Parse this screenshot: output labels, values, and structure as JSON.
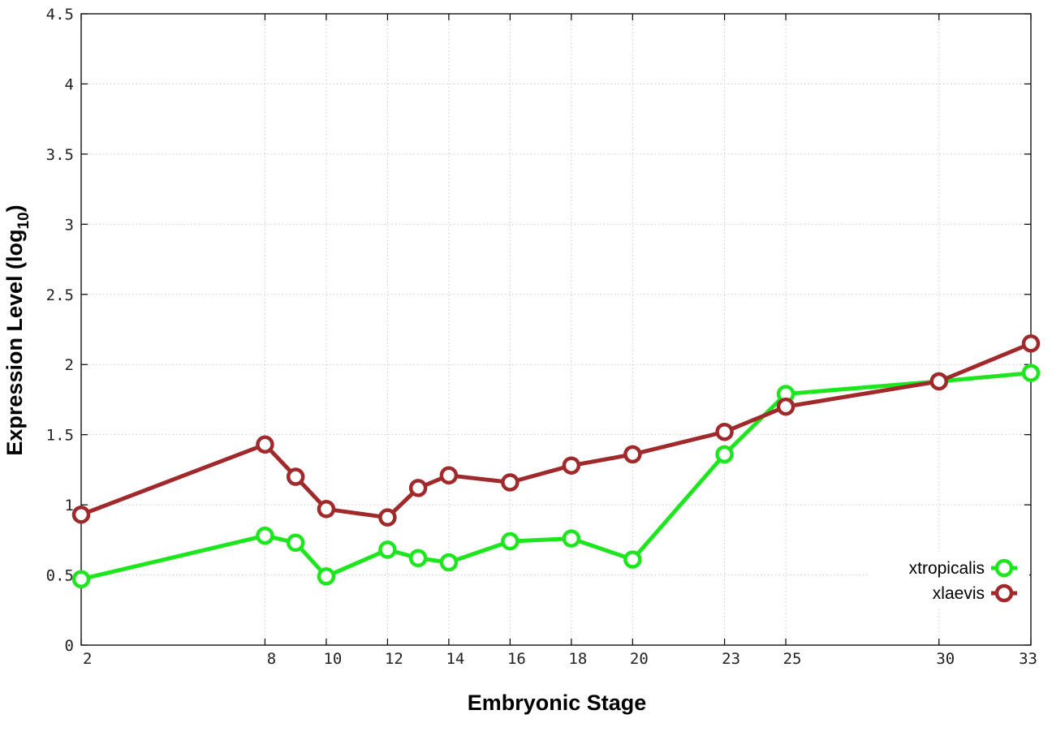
{
  "chart_data": {
    "type": "line",
    "title": "",
    "xlabel": "Embryonic Stage",
    "ylabel": {
      "main": "Expression Level (log",
      "sub": "10",
      "close": ")"
    },
    "x_ticks": [
      2,
      8,
      10,
      12,
      14,
      16,
      18,
      20,
      23,
      25,
      30,
      33
    ],
    "xlim": [
      2,
      33
    ],
    "ylim": [
      0,
      4.5
    ],
    "y_ticks": [
      0,
      0.5,
      1,
      1.5,
      2,
      2.5,
      3,
      3.5,
      4,
      4.5
    ],
    "y_tick_labels": [
      "0",
      "0.5",
      "1",
      "1.5",
      "2",
      "2.5",
      "3",
      "3.5",
      "4",
      "4.5"
    ],
    "grid": true,
    "legend_position": "bottom-right",
    "x": [
      2,
      8,
      9,
      10,
      12,
      13,
      14,
      16,
      18,
      20,
      23,
      25,
      30,
      33
    ],
    "series": [
      {
        "name": "xtropicalis",
        "color": "#1ee61e",
        "values": [
          0.47,
          0.78,
          0.73,
          0.49,
          0.68,
          0.62,
          0.59,
          0.74,
          0.76,
          0.61,
          1.36,
          1.79,
          1.88,
          1.94
        ]
      },
      {
        "name": "xlaevis",
        "color": "#a0292b",
        "values": [
          0.93,
          1.43,
          1.2,
          0.97,
          0.91,
          1.12,
          1.21,
          1.16,
          1.28,
          1.36,
          1.52,
          1.7,
          1.88,
          2.15
        ]
      }
    ]
  }
}
